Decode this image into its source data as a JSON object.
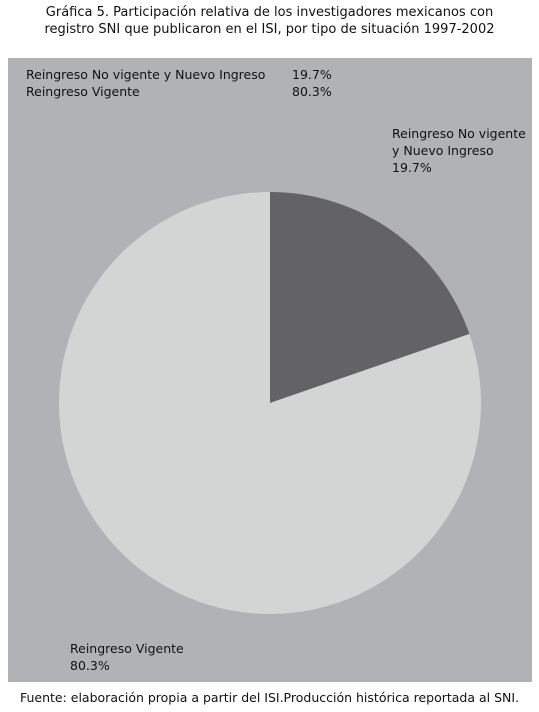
{
  "title": {
    "line1": "Gráfica 5. Participación relativa de los investigadores mexicanos con",
    "line2": "registro SNI que publicaron en el ISI, por tipo de situación 1997-2002"
  },
  "source": "Fuente: elaboración propia a partir del ISI.Producción histórica reportada al SNI.",
  "chart_data": {
    "type": "pie",
    "title": "Gráfica 5. Participación relativa de los investigadores mexicanos con registro SNI que publicaron en el ISI, por tipo de situación 1997-2002",
    "legend_position": "top-left",
    "slices": [
      {
        "label": "Reingreso No vigente y Nuevo Ingreso",
        "label_line1": "Reingreso No vigente",
        "label_line2": "y Nuevo Ingreso",
        "value": 19.7,
        "display": "19.7%",
        "color": "#636365"
      },
      {
        "label": "Reingreso Vigente",
        "label_line1": "Reingreso Vigente",
        "value": 80.3,
        "display": "80.3%",
        "color": "#d3d4d4"
      }
    ],
    "background_color": "#b0b2b6"
  }
}
